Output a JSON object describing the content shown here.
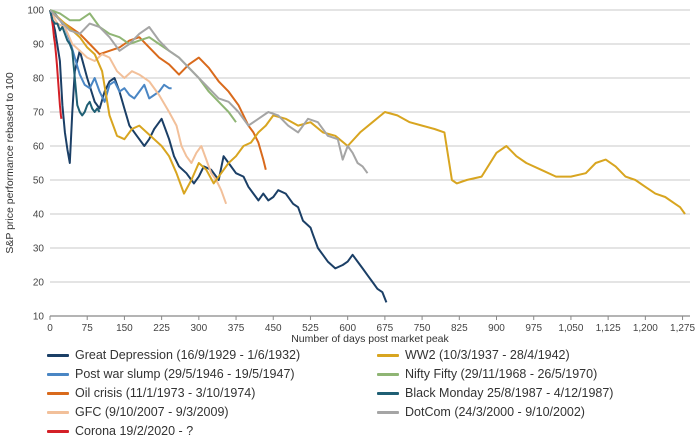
{
  "chart_data": {
    "type": "line",
    "title": "",
    "xlabel": "Number of days post market peak",
    "ylabel": "S&P price performance rebased to 100",
    "xlim": [
      0,
      1290
    ],
    "ylim": [
      10,
      100
    ],
    "x_ticks": [
      0,
      75,
      150,
      225,
      300,
      375,
      450,
      525,
      600,
      675,
      750,
      825,
      900,
      975,
      1050,
      1125,
      1200,
      1275
    ],
    "x_tick_labels": [
      "0",
      "75",
      "150",
      "225",
      "300",
      "375",
      "450",
      "525",
      "600",
      "675",
      "750",
      "825",
      "900",
      "975",
      "1,050",
      "1,125",
      "1,200",
      "1,275"
    ],
    "y_ticks": [
      10,
      20,
      30,
      40,
      50,
      60,
      70,
      80,
      90,
      100
    ],
    "grid": "horizontal",
    "legend_position": "bottom",
    "series": [
      {
        "name": "Great Depression (16/9/1929 - 1/6/1932)",
        "color": "#1b3f66",
        "x": [
          0,
          10,
          20,
          25,
          30,
          35,
          40,
          45,
          50,
          60,
          75,
          90,
          100,
          110,
          120,
          130,
          140,
          150,
          160,
          175,
          190,
          200,
          210,
          225,
          240,
          250,
          260,
          275,
          290,
          300,
          310,
          325,
          340,
          350,
          360,
          375,
          390,
          400,
          410,
          420,
          430,
          440,
          450,
          460,
          475,
          490,
          500,
          510,
          525,
          530,
          540,
          550,
          560,
          575,
          590,
          600,
          610,
          620,
          630,
          640,
          650,
          660,
          670,
          678
        ],
        "y": [
          100,
          94,
          85,
          72,
          64,
          59,
          55,
          70,
          82,
          88,
          80,
          73,
          71,
          76,
          79,
          80,
          76,
          71,
          66,
          63,
          60,
          62,
          65,
          68,
          62,
          57,
          54,
          52,
          49,
          51,
          54,
          53,
          50,
          57,
          55,
          52,
          51,
          48,
          46,
          44,
          46,
          44,
          45,
          47,
          46,
          43,
          42,
          38,
          36,
          34,
          30,
          28,
          26,
          24,
          25,
          26,
          28,
          26,
          24,
          22,
          20,
          18,
          17,
          14
        ]
      },
      {
        "name": "Post war slump (29/5/1946 - 19/5/1947)",
        "color": "#4a86c4",
        "x": [
          0,
          10,
          20,
          30,
          40,
          50,
          60,
          70,
          80,
          90,
          100,
          110,
          120,
          130,
          140,
          150,
          160,
          170,
          180,
          190,
          200,
          210,
          220,
          230,
          240,
          245
        ],
        "y": [
          100,
          99,
          97,
          95,
          91,
          86,
          81,
          78,
          77,
          80,
          76,
          73,
          78,
          79,
          76,
          77,
          75,
          74,
          76,
          78,
          74,
          75,
          76,
          78,
          77,
          77
        ]
      },
      {
        "name": "Oil crisis (11/1/1973 - 3/10/1974)",
        "color": "#d96a1c",
        "x": [
          0,
          20,
          40,
          60,
          80,
          100,
          120,
          140,
          160,
          180,
          200,
          220,
          240,
          260,
          280,
          300,
          320,
          340,
          360,
          380,
          400,
          410,
          420,
          430,
          435
        ],
        "y": [
          100,
          97,
          95,
          93,
          90,
          87,
          88,
          89,
          91,
          92,
          89,
          86,
          84,
          81,
          84,
          86,
          83,
          79,
          76,
          72,
          66,
          64,
          61,
          56,
          53
        ]
      },
      {
        "name": "GFC (9/10/2007 - 9/3/2009)",
        "color": "#f2c09a",
        "x": [
          0,
          15,
          30,
          45,
          60,
          75,
          90,
          105,
          120,
          135,
          150,
          165,
          180,
          200,
          220,
          240,
          255,
          265,
          275,
          285,
          295,
          305,
          315,
          325,
          335,
          345,
          355
        ],
        "y": [
          100,
          96,
          95,
          90,
          88,
          86,
          85,
          87,
          86,
          82,
          80,
          82,
          81,
          79,
          75,
          70,
          66,
          60,
          57,
          55,
          58,
          60,
          56,
          52,
          50,
          47,
          43
        ]
      },
      {
        "name": "Corona 19/2/2020 - ?",
        "color": "#d42027",
        "x": [
          0,
          2,
          4,
          6,
          8,
          10,
          12,
          14,
          16,
          18,
          20,
          22,
          23
        ],
        "y": [
          100,
          99,
          97,
          95,
          92,
          90,
          87,
          84,
          80,
          76,
          72,
          69,
          68
        ]
      },
      {
        "name": "WW2 (10/3/1937 - 28/4/1942)",
        "color": "#d8a520",
        "x": [
          0,
          15,
          30,
          45,
          60,
          75,
          90,
          105,
          120,
          135,
          150,
          165,
          180,
          195,
          210,
          225,
          240,
          255,
          270,
          285,
          300,
          315,
          330,
          345,
          360,
          375,
          390,
          405,
          420,
          435,
          450,
          475,
          500,
          525,
          550,
          575,
          600,
          625,
          650,
          675,
          700,
          725,
          750,
          775,
          795,
          810,
          820,
          840,
          870,
          900,
          920,
          940,
          960,
          990,
          1020,
          1050,
          1080,
          1100,
          1120,
          1140,
          1160,
          1180,
          1200,
          1220,
          1240,
          1260,
          1270,
          1280
        ],
        "y": [
          100,
          98,
          96,
          94,
          92,
          89,
          87,
          82,
          69,
          63,
          62,
          65,
          66,
          64,
          62,
          60,
          57,
          52,
          46,
          50,
          55,
          53,
          49,
          52,
          55,
          57,
          60,
          61,
          64,
          66,
          69,
          68,
          66,
          67,
          64,
          63,
          60,
          64,
          67,
          70,
          69,
          67,
          66,
          65,
          64,
          50,
          49,
          50,
          51,
          58,
          60,
          57,
          55,
          53,
          51,
          51,
          52,
          55,
          56,
          54,
          51,
          50,
          48,
          46,
          45,
          43,
          42,
          40
        ]
      },
      {
        "name": "Nifty Fifty (29/11/1968 - 26/5/1970)",
        "color": "#8fb574",
        "x": [
          0,
          20,
          40,
          60,
          80,
          100,
          120,
          140,
          160,
          180,
          200,
          220,
          240,
          260,
          280,
          300,
          320,
          340,
          360,
          375
        ],
        "y": [
          100,
          99,
          97,
          97,
          99,
          95,
          93,
          92,
          90,
          91,
          92,
          90,
          88,
          86,
          83,
          80,
          76,
          73,
          70,
          67
        ]
      },
      {
        "name": "Black Monday 25/8/1987 - 4/12/1987)",
        "color": "#1f5f74",
        "x": [
          0,
          5,
          10,
          15,
          20,
          25,
          30,
          35,
          40,
          45,
          50,
          55,
          60,
          65,
          70,
          75,
          80,
          85,
          90,
          95,
          100
        ],
        "y": [
          100,
          97,
          96,
          96,
          94,
          95,
          93,
          91,
          90,
          88,
          80,
          72,
          70,
          69,
          70,
          72,
          73,
          71,
          70,
          71,
          70
        ]
      },
      {
        "name": "DotCom (24/3/2000 - 9/10/2002)",
        "color": "#a5a5a5",
        "x": [
          0,
          20,
          40,
          60,
          80,
          100,
          120,
          140,
          160,
          180,
          200,
          220,
          240,
          260,
          280,
          300,
          320,
          340,
          360,
          380,
          400,
          420,
          440,
          460,
          480,
          500,
          520,
          540,
          560,
          580,
          590,
          600,
          610,
          620,
          630,
          640
        ],
        "y": [
          100,
          97,
          94,
          93,
          96,
          95,
          92,
          88,
          90,
          93,
          95,
          91,
          88,
          86,
          83,
          80,
          77,
          74,
          73,
          70,
          66,
          68,
          70,
          69,
          66,
          64,
          68,
          67,
          63,
          62,
          56,
          60,
          58,
          55,
          54,
          52
        ]
      }
    ]
  }
}
